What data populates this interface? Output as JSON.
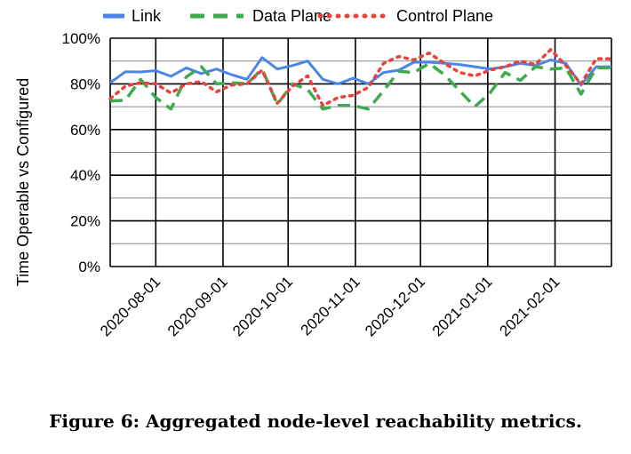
{
  "caption": "Figure 6:  Aggregated node-level reachability metrics.",
  "chart_data": {
    "type": "line",
    "title": "",
    "xlabel": "",
    "ylabel": "Time Operable vs Configured",
    "ylim": [
      0,
      100
    ],
    "yticks": [
      0,
      20,
      40,
      60,
      80,
      100
    ],
    "ytick_labels": [
      "0%",
      "20%",
      "40%",
      "60%",
      "80%",
      "100%"
    ],
    "xlim": [
      "2020-07-11",
      "2021-02-27"
    ],
    "xtick_labels": [
      "2020-08-01",
      "2020-09-01",
      "2020-10-01",
      "2020-11-01",
      "2020-12-01",
      "2021-01-01",
      "2021-02-01"
    ],
    "grid": true,
    "legend": "top",
    "x": [
      "2020-07-11",
      "2020-07-18",
      "2020-07-25",
      "2020-08-01",
      "2020-08-08",
      "2020-08-15",
      "2020-08-22",
      "2020-08-29",
      "2020-09-05",
      "2020-09-12",
      "2020-09-19",
      "2020-09-26",
      "2020-10-03",
      "2020-10-10",
      "2020-10-17",
      "2020-10-24",
      "2020-10-31",
      "2020-11-07",
      "2020-11-14",
      "2020-11-21",
      "2020-11-28",
      "2020-12-05",
      "2020-12-12",
      "2020-12-19",
      "2020-12-26",
      "2021-01-02",
      "2021-01-09",
      "2021-01-16",
      "2021-01-23",
      "2021-01-30",
      "2021-02-06",
      "2021-02-13",
      "2021-02-20",
      "2021-02-27"
    ],
    "series": [
      {
        "name": "Link",
        "color": "#4a86e8",
        "dash": "solid",
        "values": [
          80.5,
          85.3,
          85.2,
          85.8,
          83.3,
          87.0,
          84.5,
          86.5,
          84.0,
          82.0,
          91.5,
          86.5,
          88.0,
          90.0,
          82.0,
          80.0,
          82.5,
          80.0,
          85.0,
          86.0,
          89.5,
          89.5,
          89.0,
          88.5,
          87.5,
          86.5,
          87.5,
          89.0,
          88.0,
          90.5,
          89.0,
          79.5,
          87.5,
          87.5
        ]
      },
      {
        "name": "Data Plane",
        "color": "#3faa4f",
        "dash": "longdash",
        "values": [
          72.5,
          72.8,
          82.0,
          74.0,
          69.0,
          83.0,
          87.5,
          80.0,
          80.5,
          80.0,
          86.5,
          71.0,
          80.0,
          77.5,
          69.0,
          70.5,
          70.5,
          69.0,
          77.0,
          85.5,
          85.0,
          89.0,
          84.0,
          77.0,
          70.0,
          76.0,
          85.0,
          81.5,
          87.5,
          86.5,
          87.0,
          75.5,
          87.0,
          87.0
        ]
      },
      {
        "name": "Control Plane",
        "color": "#e8423a",
        "dash": "dot",
        "values": [
          73.5,
          79.0,
          80.5,
          80.0,
          76.0,
          80.0,
          81.0,
          76.5,
          79.5,
          80.0,
          86.0,
          71.5,
          79.0,
          83.5,
          70.5,
          74.0,
          75.0,
          78.5,
          89.0,
          92.0,
          90.5,
          93.5,
          89.0,
          85.0,
          83.5,
          86.0,
          87.5,
          90.0,
          88.5,
          95.0,
          88.0,
          80.0,
          91.0,
          91.0
        ]
      }
    ]
  }
}
